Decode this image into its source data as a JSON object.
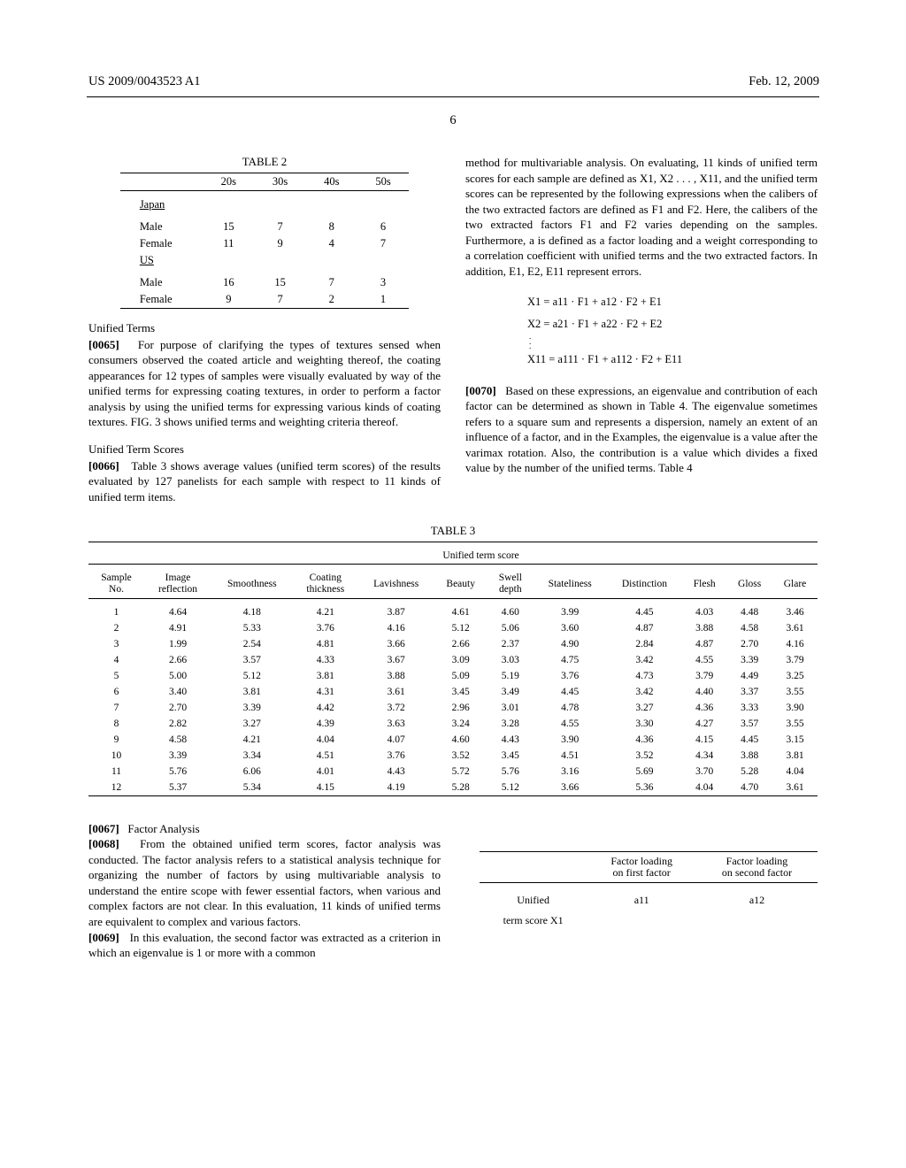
{
  "header": {
    "left": "US 2009/0043523 A1",
    "right": "Feb. 12, 2009",
    "page": "6"
  },
  "table2": {
    "title": "TABLE 2",
    "cols": [
      "",
      "20s",
      "30s",
      "40s",
      "50s"
    ],
    "groups": [
      {
        "label": "Japan",
        "rows": [
          {
            "label": "Male",
            "vals": [
              "15",
              "7",
              "8",
              "6"
            ]
          },
          {
            "label": "Female",
            "vals": [
              "11",
              "9",
              "4",
              "7"
            ]
          }
        ]
      },
      {
        "label": "US",
        "rows": [
          {
            "label": "Male",
            "vals": [
              "16",
              "15",
              "7",
              "3"
            ]
          },
          {
            "label": "Female",
            "vals": [
              "9",
              "7",
              "2",
              "1"
            ]
          }
        ]
      }
    ]
  },
  "leftCol": {
    "h1": "Unified Terms",
    "p1_num": "[0065]",
    "p1": "For purpose of clarifying the types of textures sensed when consumers observed the coated article and weighting thereof, the coating appearances for 12 types of samples were visually evaluated by way of the unified terms for expressing coating textures, in order to perform a factor analysis by using the unified terms for expressing various kinds of coating textures. FIG. 3 shows unified terms and weighting criteria thereof.",
    "h2": "Unified Term Scores",
    "p2_num": "[0066]",
    "p2": "Table 3 shows average values (unified term scores) of the results evaluated by 127 panelists for each sample with respect to 11 kinds of unified term items."
  },
  "rightCol": {
    "p1": "method for multivariable analysis. On evaluating, 11 kinds of unified term scores for each sample are defined as X1, X2 . . . , X11, and the unified term scores can be represented by the following expressions when the calibers of the two extracted factors are defined as F1 and F2. Here, the calibers of the two extracted factors F1 and F2 varies depending on the samples. Furthermore, a is defined as a factor loading and a weight corresponding to a correlation coefficient with unified terms and the two extracted factors. In addition, E1, E2, E11 represent errors.",
    "eq1": "X1 = a11 · F1 + a12 · F2 + E1",
    "eq2": "X2 = a21 · F1 + a22 · F2 + E2",
    "eq3": "X11 = a111 · F1 + a112 · F2 + E11",
    "p2_num": "[0070]",
    "p2": "Based on these expressions, an eigenvalue and contribution of each factor can be determined as shown in Table 4. The eigenvalue sometimes refers to a square sum and represents a dispersion, namely an extent of an influence of a factor, and in the Examples, the eigenvalue is a value after the varimax rotation. Also, the contribution is a value which divides a fixed value by the number of the unified terms. Table 4"
  },
  "table3": {
    "title": "TABLE 3",
    "spanHeader": "Unified term score",
    "cols": [
      "Sample No.",
      "Image reflection",
      "Smoothness",
      "Coating thickness",
      "Lavishness",
      "Beauty",
      "Swell depth",
      "Stateliness",
      "Distinction",
      "Flesh",
      "Gloss",
      "Glare"
    ],
    "rows": [
      [
        "1",
        "4.64",
        "4.18",
        "4.21",
        "3.87",
        "4.61",
        "4.60",
        "3.99",
        "4.45",
        "4.03",
        "4.48",
        "3.46"
      ],
      [
        "2",
        "4.91",
        "5.33",
        "3.76",
        "4.16",
        "5.12",
        "5.06",
        "3.60",
        "4.87",
        "3.88",
        "4.58",
        "3.61"
      ],
      [
        "3",
        "1.99",
        "2.54",
        "4.81",
        "3.66",
        "2.66",
        "2.37",
        "4.90",
        "2.84",
        "4.87",
        "2.70",
        "4.16"
      ],
      [
        "4",
        "2.66",
        "3.57",
        "4.33",
        "3.67",
        "3.09",
        "3.03",
        "4.75",
        "3.42",
        "4.55",
        "3.39",
        "3.79"
      ],
      [
        "5",
        "5.00",
        "5.12",
        "3.81",
        "3.88",
        "5.09",
        "5.19",
        "3.76",
        "4.73",
        "3.79",
        "4.49",
        "3.25"
      ],
      [
        "6",
        "3.40",
        "3.81",
        "4.31",
        "3.61",
        "3.45",
        "3.49",
        "4.45",
        "3.42",
        "4.40",
        "3.37",
        "3.55"
      ],
      [
        "7",
        "2.70",
        "3.39",
        "4.42",
        "3.72",
        "2.96",
        "3.01",
        "4.78",
        "3.27",
        "4.36",
        "3.33",
        "3.90"
      ],
      [
        "8",
        "2.82",
        "3.27",
        "4.39",
        "3.63",
        "3.24",
        "3.28",
        "4.55",
        "3.30",
        "4.27",
        "3.57",
        "3.55"
      ],
      [
        "9",
        "4.58",
        "4.21",
        "4.04",
        "4.07",
        "4.60",
        "4.43",
        "3.90",
        "4.36",
        "4.15",
        "4.45",
        "3.15"
      ],
      [
        "10",
        "3.39",
        "3.34",
        "4.51",
        "3.76",
        "3.52",
        "3.45",
        "4.51",
        "3.52",
        "4.34",
        "3.88",
        "3.81"
      ],
      [
        "11",
        "5.76",
        "6.06",
        "4.01",
        "4.43",
        "5.72",
        "5.76",
        "3.16",
        "5.69",
        "3.70",
        "5.28",
        "4.04"
      ],
      [
        "12",
        "5.37",
        "5.34",
        "4.15",
        "4.19",
        "5.28",
        "5.12",
        "3.66",
        "5.36",
        "4.04",
        "4.70",
        "3.61"
      ]
    ]
  },
  "bottom": {
    "p1_num": "[0067]",
    "p1_t": "Factor Analysis",
    "p2_num": "[0068]",
    "p2": "From the obtained unified term scores, factor analysis was conducted. The factor analysis refers to a statistical analysis technique for organizing the number of factors by using multivariable analysis to understand the entire scope with fewer essential factors, when various and complex factors are not clear. In this evaluation, 11 kinds of unified terms are equivalent to complex and various factors.",
    "p3_num": "[0069]",
    "p3": "In this evaluation, the second factor was extracted as a criterion in which an eigenvalue is 1 or more with a common"
  },
  "table5": {
    "h1": "Factor loading on first factor",
    "h2": "Factor loading on second factor",
    "r1a": "Unified",
    "r1b": "term score X1",
    "v1": "a11",
    "v2": "a12"
  }
}
